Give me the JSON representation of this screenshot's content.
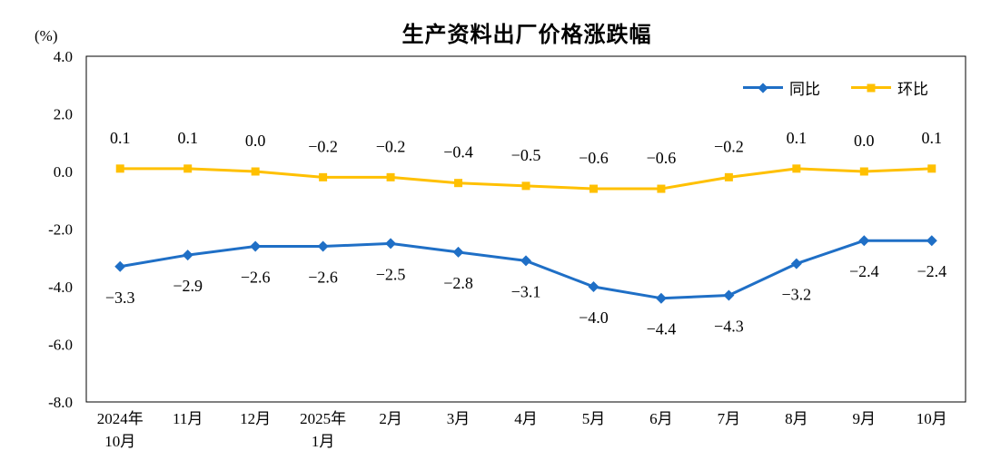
{
  "chart_data": {
    "type": "line",
    "title": "生产资料出厂价格涨跌幅",
    "unit": "(%)",
    "xlabel": "",
    "ylabel": "",
    "ylim": [
      -8.0,
      4.0
    ],
    "grid": false,
    "legend_position": "top-right",
    "categories": [
      [
        "2024年",
        "10月"
      ],
      [
        "11月"
      ],
      [
        "12月"
      ],
      [
        "2025年",
        "1月"
      ],
      [
        "2月"
      ],
      [
        "3月"
      ],
      [
        "4月"
      ],
      [
        "5月"
      ],
      [
        "6月"
      ],
      [
        "7月"
      ],
      [
        "8月"
      ],
      [
        "9月"
      ],
      [
        "10月"
      ]
    ],
    "ytick_values": [
      4,
      2,
      0,
      -2,
      -4,
      -6,
      -8
    ],
    "ytick_labels": [
      "4.0",
      "2.0",
      "0.0",
      "-2.0",
      "-4.0",
      "-6.0",
      "-8.0"
    ],
    "series": [
      {
        "name": "同比",
        "color": "#1F6FC6",
        "marker": "diamond",
        "values": [
          -3.3,
          -2.9,
          -2.6,
          -2.6,
          -2.5,
          -2.8,
          -3.1,
          -4.0,
          -4.4,
          -4.3,
          -3.2,
          -2.4,
          -2.4
        ],
        "labels": [
          "−3.3",
          "−2.9",
          "−2.6",
          "−2.6",
          "−2.5",
          "−2.8",
          "−3.1",
          "−4.0",
          "−4.4",
          "−4.3",
          "−3.2",
          "−2.4",
          "−2.4"
        ]
      },
      {
        "name": "环比",
        "color": "#FFC000",
        "marker": "square",
        "values": [
          0.1,
          0.1,
          0.0,
          -0.2,
          -0.2,
          -0.4,
          -0.5,
          -0.6,
          -0.6,
          -0.2,
          0.1,
          0.0,
          0.1
        ],
        "labels": [
          "0.1",
          "0.1",
          "0.0",
          "−0.2",
          "−0.2",
          "−0.4",
          "−0.5",
          "−0.6",
          "−0.6",
          "−0.2",
          "0.1",
          "0.0",
          "0.1"
        ]
      }
    ]
  }
}
